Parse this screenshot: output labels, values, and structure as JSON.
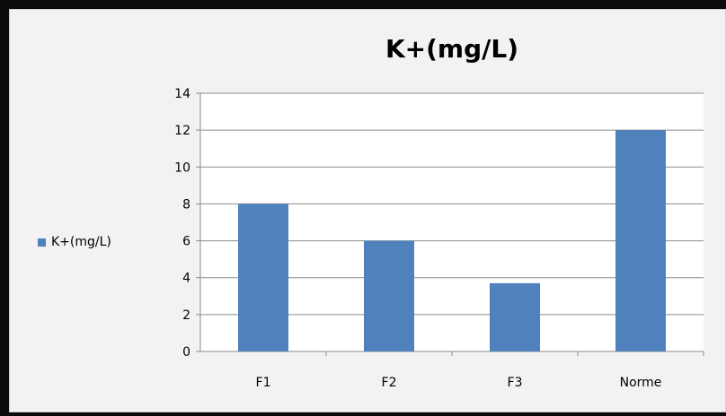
{
  "chart_data": {
    "type": "bar",
    "title": "K+(mg/L)",
    "categories": [
      "F1",
      "F2",
      "F3",
      "Norme"
    ],
    "series": [
      {
        "name": "K+(mg/L)",
        "values": [
          8,
          6,
          3.7,
          12
        ],
        "color": "#4f81bd"
      }
    ],
    "ylim": [
      0,
      14
    ],
    "yticks": [
      0,
      2,
      4,
      6,
      8,
      10,
      12,
      14
    ],
    "grid": true,
    "legend": "left"
  }
}
